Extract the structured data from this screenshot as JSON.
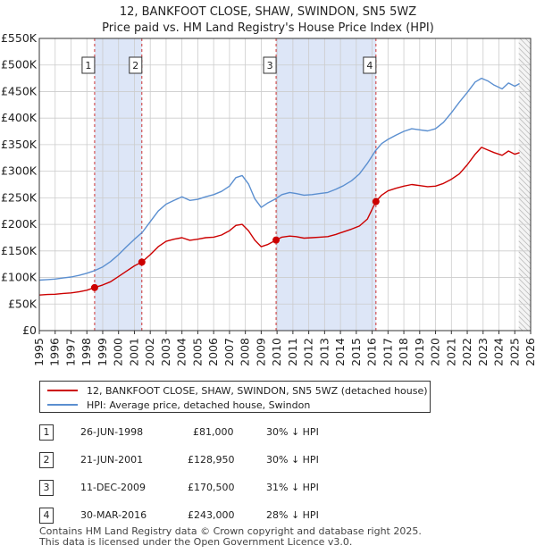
{
  "chart_data": {
    "type": "line",
    "title": "12, BANKFOOT CLOSE, SHAW, SWINDON, SN5 5WZ",
    "subtitle": "Price paid vs. HM Land Registry's House Price Index (HPI)",
    "xlim": [
      1995,
      2026
    ],
    "ylim": [
      0,
      550000
    ],
    "x_ticks": [
      "1995",
      "1996",
      "1997",
      "1998",
      "1999",
      "2000",
      "2001",
      "2002",
      "2003",
      "2004",
      "2005",
      "2006",
      "2007",
      "2008",
      "2009",
      "2010",
      "2011",
      "2012",
      "2013",
      "2014",
      "2015",
      "2016",
      "2017",
      "2018",
      "2019",
      "2020",
      "2021",
      "2022",
      "2023",
      "2024",
      "2025",
      "2026"
    ],
    "y_ticks": [
      "£0",
      "£50K",
      "£100K",
      "£150K",
      "£200K",
      "£250K",
      "£300K",
      "£350K",
      "£400K",
      "£450K",
      "£500K",
      "£550K"
    ],
    "colors": {
      "property": "#cc0000",
      "hpi": "#5b8fd0",
      "shade": "#dde6f7",
      "marker": "#cc0000",
      "vline": "#cc3333",
      "grid": "#cccccc"
    },
    "series": [
      {
        "name": "12, BANKFOOT CLOSE, SHAW, SWINDON, SN5 5WZ (detached house)",
        "color": "#cc0000",
        "x": [
          1995.0,
          1995.5,
          1996.0,
          1996.5,
          1997.0,
          1997.5,
          1998.0,
          1998.49,
          1999.0,
          1999.5,
          2000.0,
          2000.5,
          2001.0,
          2001.47,
          2002.0,
          2002.5,
          2003.0,
          2003.5,
          2004.0,
          2004.5,
          2005.0,
          2005.5,
          2006.0,
          2006.5,
          2007.0,
          2007.4,
          2007.8,
          2008.2,
          2008.6,
          2009.0,
          2009.4,
          2009.94,
          2010.3,
          2010.8,
          2011.2,
          2011.7,
          2012.2,
          2012.7,
          2013.2,
          2013.7,
          2014.2,
          2014.7,
          2015.2,
          2015.7,
          2016.24,
          2016.6,
          2017.0,
          2017.5,
          2018.0,
          2018.5,
          2019.0,
          2019.5,
          2020.0,
          2020.5,
          2021.0,
          2021.5,
          2022.0,
          2022.5,
          2022.9,
          2023.3,
          2023.7,
          2024.2,
          2024.6,
          2025.0,
          2025.3
        ],
        "values": [
          67000,
          68000,
          68500,
          70000,
          71000,
          73000,
          76000,
          81000,
          86000,
          92000,
          102000,
          112000,
          122000,
          128950,
          143000,
          158000,
          168000,
          172000,
          175000,
          170000,
          172000,
          175000,
          176000,
          180000,
          188000,
          198000,
          200000,
          188000,
          170000,
          158000,
          162000,
          170500,
          176000,
          178000,
          177000,
          174000,
          175000,
          176000,
          177000,
          181000,
          186000,
          191000,
          197000,
          210000,
          243000,
          255000,
          263000,
          268000,
          272000,
          275000,
          273000,
          271000,
          272000,
          277000,
          285000,
          295000,
          312000,
          332000,
          345000,
          340000,
          335000,
          330000,
          338000,
          332000,
          335000
        ]
      },
      {
        "name": "HPI: Average price, detached house, Swindon",
        "color": "#5b8fd0",
        "x": [
          1995.0,
          1995.5,
          1996.0,
          1996.5,
          1997.0,
          1997.5,
          1998.0,
          1998.5,
          1999.0,
          1999.5,
          2000.0,
          2000.5,
          2001.0,
          2001.5,
          2002.0,
          2002.5,
          2003.0,
          2003.5,
          2004.0,
          2004.5,
          2005.0,
          2005.5,
          2006.0,
          2006.5,
          2007.0,
          2007.4,
          2007.8,
          2008.2,
          2008.6,
          2009.0,
          2009.4,
          2009.9,
          2010.3,
          2010.8,
          2011.2,
          2011.7,
          2012.2,
          2012.7,
          2013.2,
          2013.7,
          2014.2,
          2014.7,
          2015.2,
          2015.7,
          2016.2,
          2016.6,
          2017.0,
          2017.5,
          2018.0,
          2018.5,
          2019.0,
          2019.5,
          2020.0,
          2020.5,
          2021.0,
          2021.5,
          2022.0,
          2022.5,
          2022.9,
          2023.3,
          2023.7,
          2024.2,
          2024.6,
          2025.0,
          2025.3
        ],
        "values": [
          95000,
          96000,
          97000,
          99000,
          101000,
          104000,
          108000,
          113000,
          120000,
          130000,
          143000,
          158000,
          172000,
          185000,
          205000,
          225000,
          238000,
          245000,
          252000,
          245000,
          247000,
          252000,
          256000,
          262000,
          272000,
          288000,
          292000,
          276000,
          248000,
          232000,
          240000,
          248000,
          256000,
          260000,
          258000,
          255000,
          256000,
          258000,
          260000,
          266000,
          273000,
          282000,
          295000,
          315000,
          338000,
          352000,
          360000,
          368000,
          375000,
          380000,
          378000,
          376000,
          380000,
          392000,
          410000,
          430000,
          448000,
          468000,
          475000,
          470000,
          462000,
          455000,
          466000,
          460000,
          465000
        ]
      }
    ],
    "sales": [
      {
        "num": "1",
        "x": 1998.49,
        "value": 81000
      },
      {
        "num": "2",
        "x": 2001.47,
        "value": 128950
      },
      {
        "num": "3",
        "x": 2009.94,
        "value": 170500
      },
      {
        "num": "4",
        "x": 2016.24,
        "value": 243000
      }
    ],
    "shaded_spans": [
      [
        1998.49,
        2001.47
      ],
      [
        2009.94,
        2016.24
      ]
    ],
    "hatch_from": 2025.25
  },
  "legend": {
    "property_label": "12, BANKFOOT CLOSE, SHAW, SWINDON, SN5 5WZ (detached house)",
    "hpi_label": "HPI: Average price, detached house, Swindon"
  },
  "sales_table": [
    {
      "num": "1",
      "date": "26-JUN-1998",
      "price": "£81,000",
      "delta": "30% ↓ HPI"
    },
    {
      "num": "2",
      "date": "21-JUN-2001",
      "price": "£128,950",
      "delta": "30% ↓ HPI"
    },
    {
      "num": "3",
      "date": "11-DEC-2009",
      "price": "£170,500",
      "delta": "31% ↓ HPI"
    },
    {
      "num": "4",
      "date": "30-MAR-2016",
      "price": "£243,000",
      "delta": "28% ↓ HPI"
    }
  ],
  "footer": {
    "line1": "Contains HM Land Registry data © Crown copyright and database right 2025.",
    "line2": "This data is licensed under the Open Government Licence v3.0."
  }
}
